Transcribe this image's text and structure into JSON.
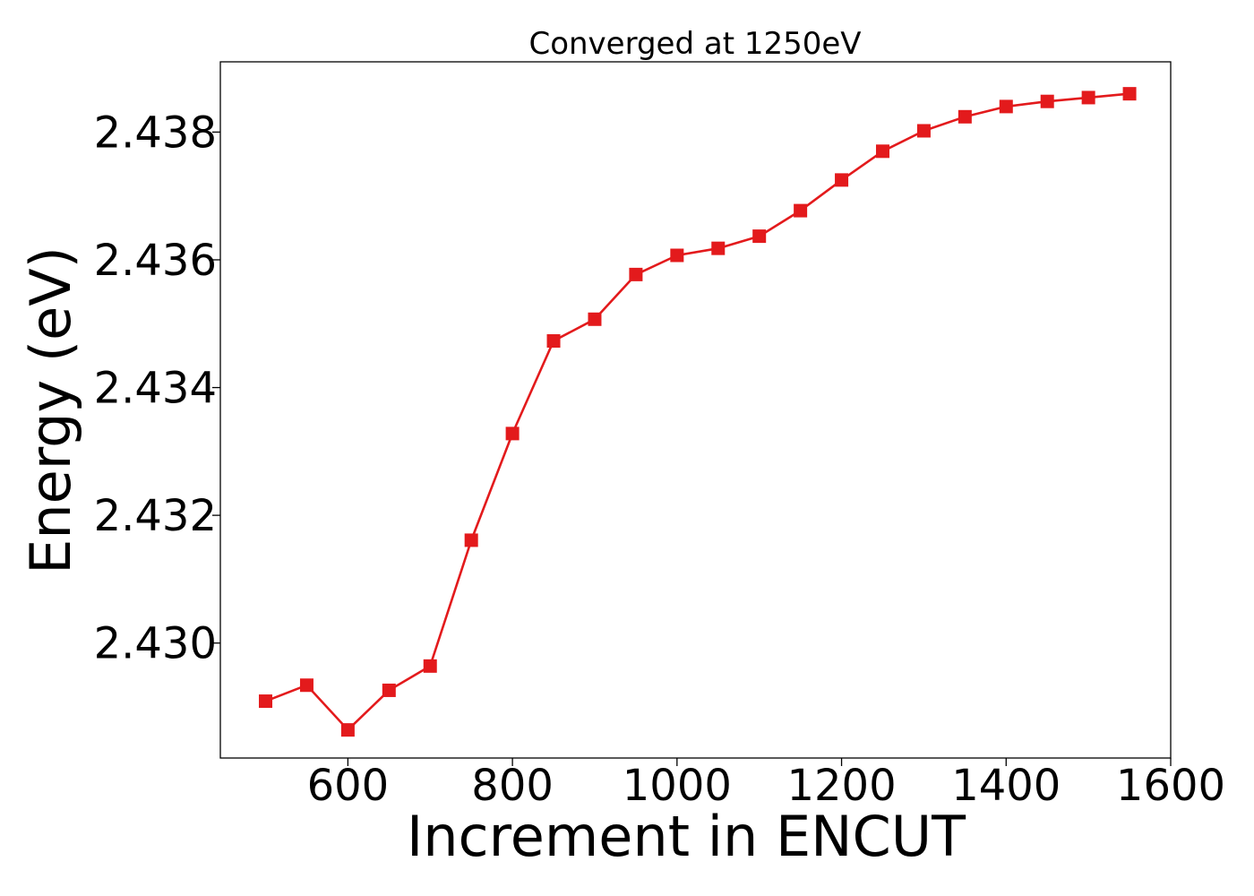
{
  "chart_data": {
    "type": "line",
    "title": "Converged at 1250eV",
    "xlabel": "Increment in ENCUT",
    "ylabel": "Energy (eV)",
    "xlim": [
      445,
      1600
    ],
    "ylim": [
      2.4282,
      2.4391
    ],
    "x_ticks": [
      600,
      800,
      1000,
      1200,
      1400,
      1600
    ],
    "x_tick_labels": [
      "600",
      "800",
      "1000",
      "1200",
      "1400",
      "1600"
    ],
    "y_ticks": [
      2.43,
      2.432,
      2.434,
      2.436,
      2.438
    ],
    "y_tick_labels": [
      "2.430",
      "2.432",
      "2.434",
      "2.436",
      "2.438"
    ],
    "grid": false,
    "marker": "square",
    "series": [
      {
        "color": "#e31a1c",
        "x": [
          500,
          550,
          600,
          650,
          700,
          750,
          800,
          850,
          900,
          950,
          1000,
          1050,
          1100,
          1150,
          1200,
          1250,
          1300,
          1350,
          1400,
          1450,
          1500,
          1550
        ],
        "y": [
          2.42909,
          2.42934,
          2.42864,
          2.42926,
          2.42964,
          2.43161,
          2.43328,
          2.43473,
          2.43507,
          2.43577,
          2.43607,
          2.43618,
          2.43637,
          2.43677,
          2.43725,
          2.4377,
          2.43802,
          2.43824,
          2.4384,
          2.43848,
          2.43854,
          2.4386
        ]
      }
    ]
  }
}
